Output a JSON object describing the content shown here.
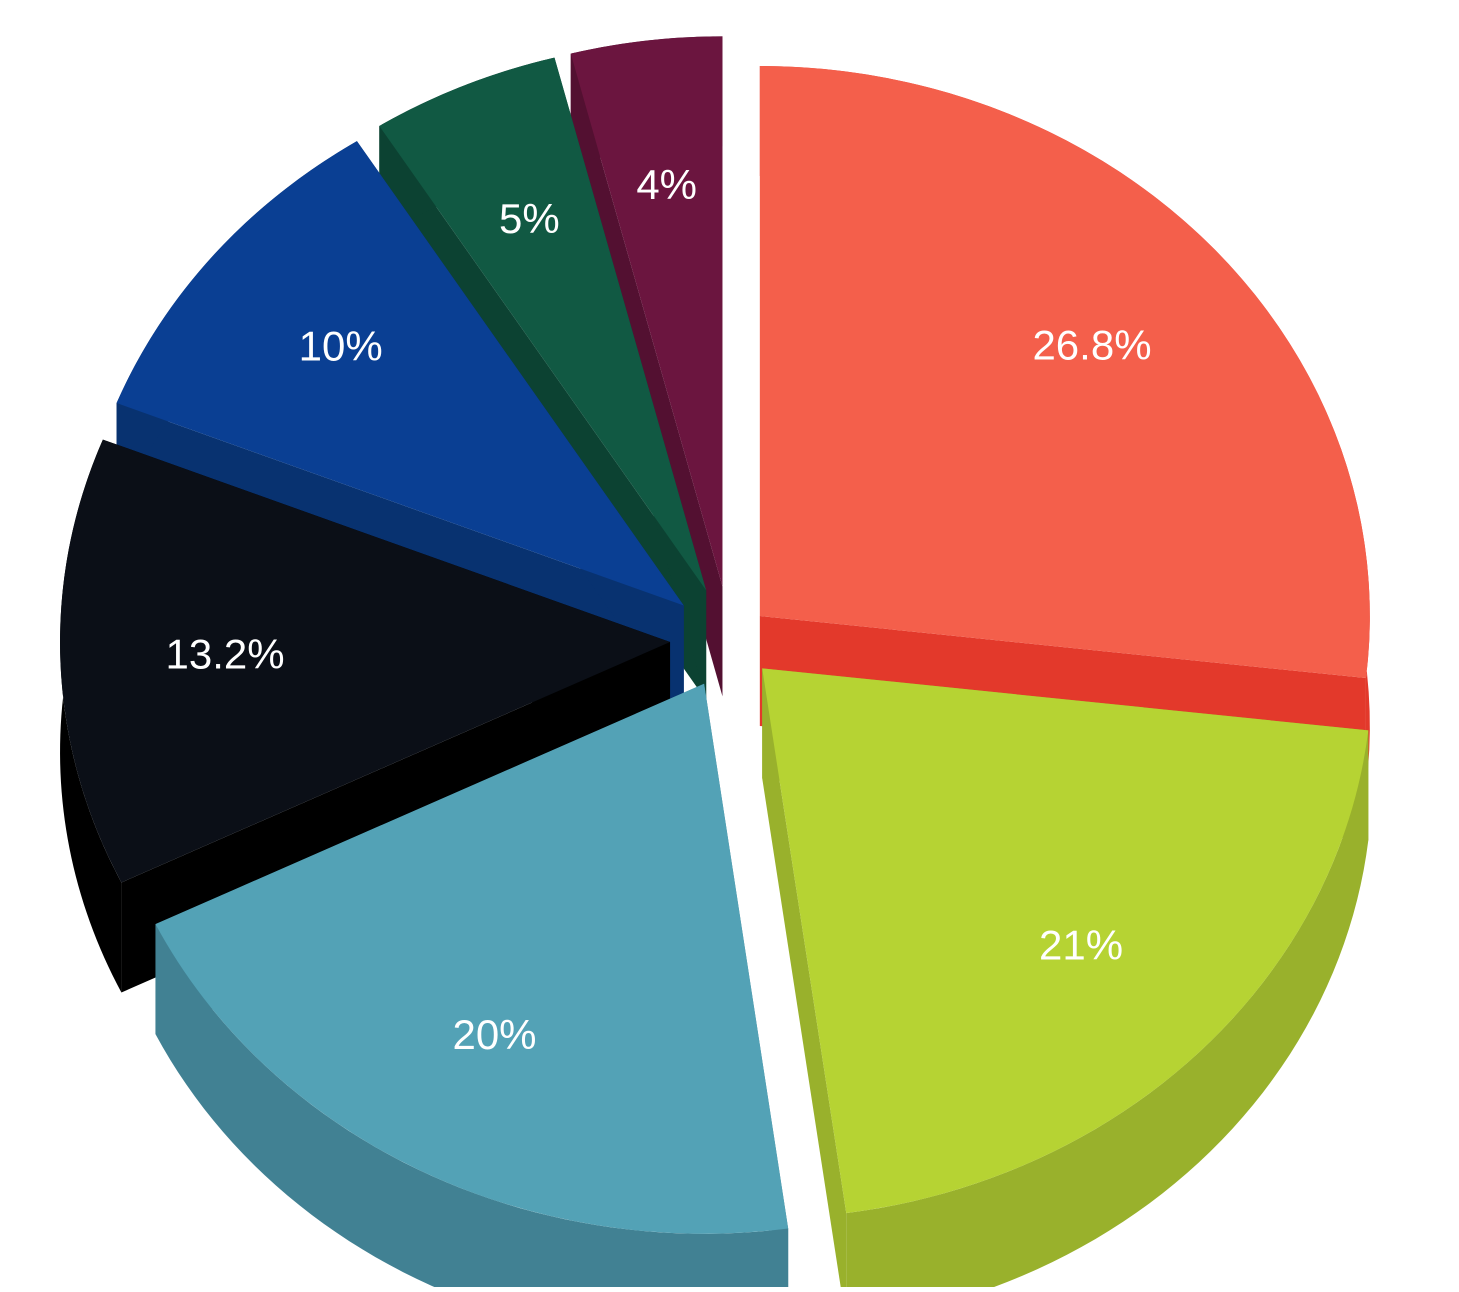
{
  "chart_data": {
    "type": "pie",
    "style": "3d-exploded",
    "title": "",
    "start_angle_deg": 0,
    "direction": "clockwise",
    "legend": "none",
    "slices": [
      {
        "value": 26.8,
        "label": "26.8%",
        "top_color": "#F45F4B",
        "side_color": "#E3392B"
      },
      {
        "value": 21,
        "label": "21%",
        "top_color": "#B6D333",
        "side_color": "#99B12C"
      },
      {
        "value": 20,
        "label": "20%",
        "top_color": "#53A2B6",
        "side_color": "#418193"
      },
      {
        "value": 13.2,
        "label": "13.2%",
        "top_color": "#0B0F17",
        "side_color": "#000000"
      },
      {
        "value": 10,
        "label": "10%",
        "top_color": "#0A3F93",
        "side_color": "#083270"
      },
      {
        "value": 5,
        "label": "5%",
        "top_color": "#115943",
        "side_color": "#0C4232"
      },
      {
        "value": 4,
        "label": "4%",
        "top_color": "#6B153F",
        "side_color": "#531031"
      }
    ]
  }
}
